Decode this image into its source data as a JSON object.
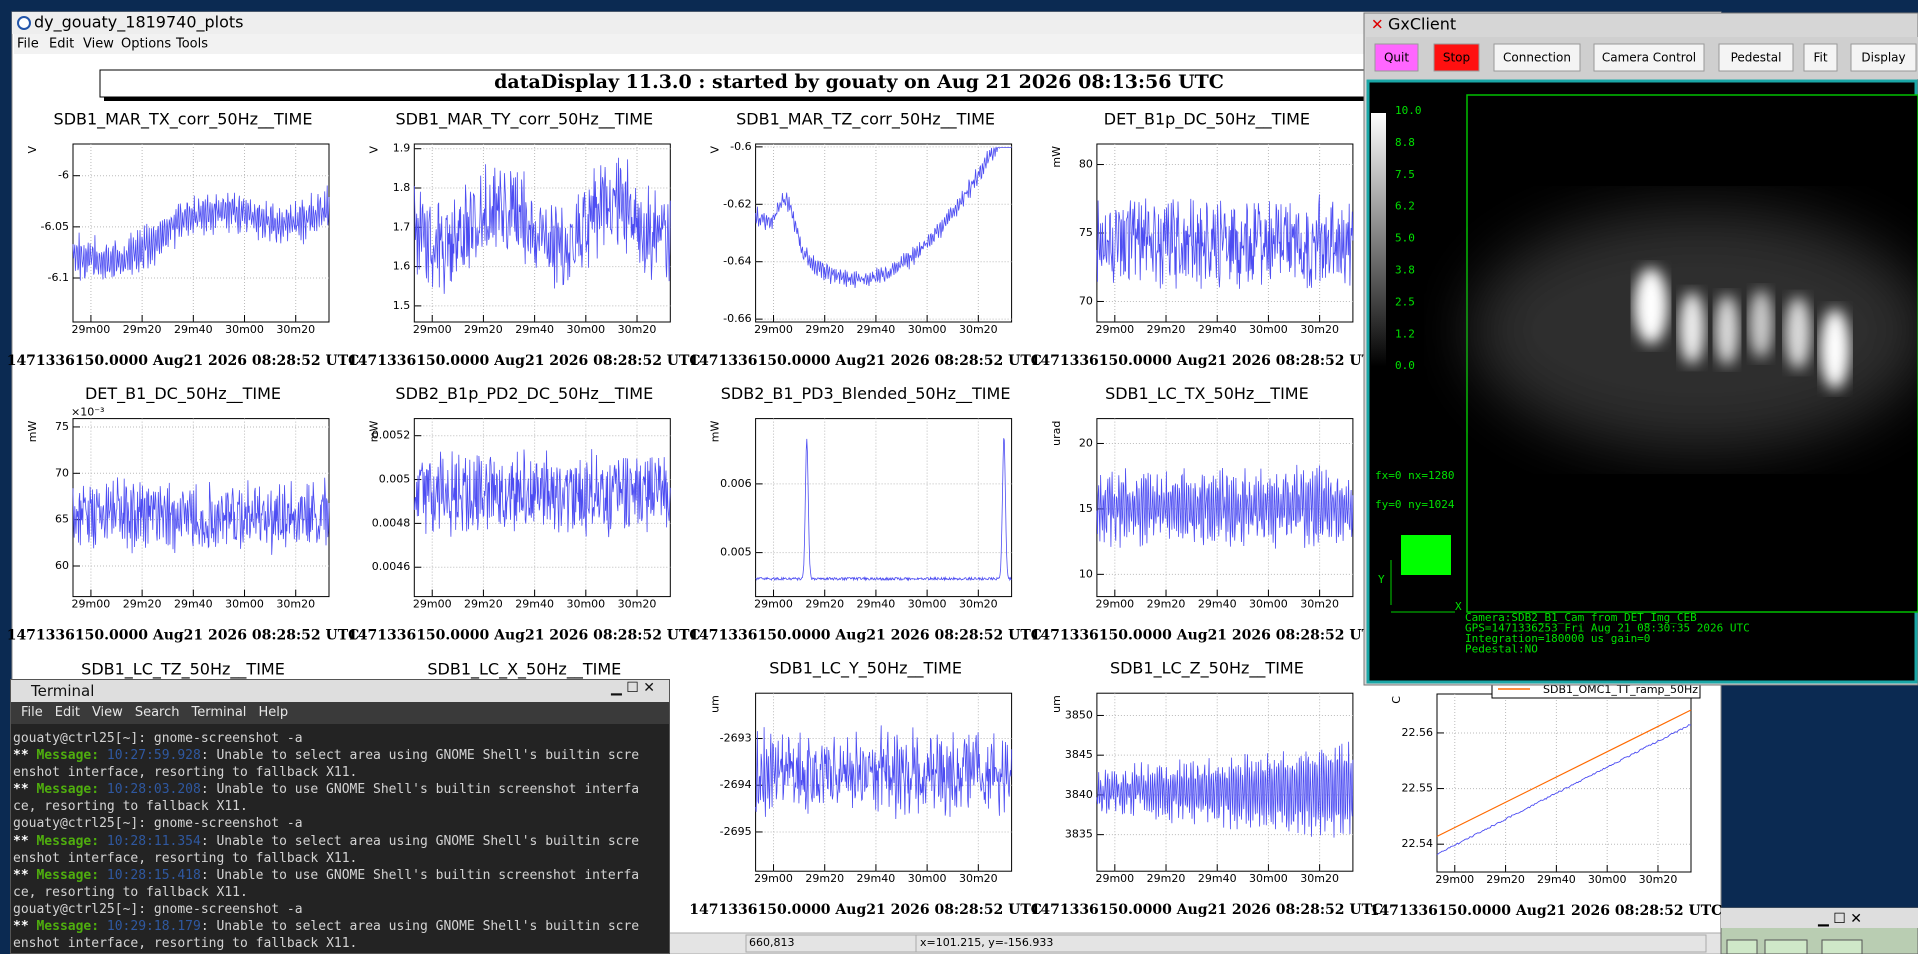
{
  "plots_window": {
    "title": "dy_gouaty_1819740_plots",
    "menu": [
      "File",
      "Edit",
      "View",
      "Options",
      "Tools"
    ],
    "banner": "dataDisplay 11.3.0 : started by gouaty on Aug 21 2026 08:13:56 UTC",
    "xticks": [
      "29m00",
      "29m20",
      "29m40",
      "30m00",
      "30m20"
    ],
    "footer": "1471336150.0000 Aug21 2026 08:28:52 UTC",
    "plots": [
      {
        "title": "SDB1_MAR_TX_corr_50Hz__TIME",
        "unit": "V",
        "ylim": [
          -6.143,
          -5.969
        ],
        "yticks": [
          -6,
          -6.05,
          -6.1
        ]
      },
      {
        "title": "SDB1_MAR_TY_corr_50Hz__TIME",
        "unit": "V",
        "ylim": [
          1.459,
          1.912
        ],
        "yticks": [
          1.9,
          1.8,
          1.7,
          1.6,
          1.5
        ]
      },
      {
        "title": "SDB1_MAR_TZ_corr_50Hz__TIME",
        "unit": "V",
        "ylim": [
          -0.661,
          -0.599
        ],
        "yticks": [
          -0.6,
          -0.62,
          -0.64,
          -0.66
        ]
      },
      {
        "title": "DET_B1p_DC_50Hz__TIME",
        "unit": "mW",
        "ylim": [
          68.5,
          81.5
        ],
        "yticks": [
          80,
          75,
          70
        ]
      },
      {
        "title": "DET_B1_DC_50Hz__TIME",
        "unit": "mW",
        "exponent": "×10⁻³",
        "ylim": [
          56.7,
          75.9
        ],
        "yticks": [
          75,
          70,
          65,
          60
        ]
      },
      {
        "title": "SDB2_B1p_PD2_DC_50Hz__TIME",
        "unit": "mW",
        "ylim": [
          0.004466,
          0.005278
        ],
        "yticks": [
          0.0052,
          0.005,
          0.0048,
          0.0046
        ]
      },
      {
        "title": "SDB2_B1_PD3_Blended_50Hz__TIME",
        "unit": "mW",
        "ylim": [
          0.00436,
          0.00695
        ],
        "yticks": [
          0.006,
          0.005
        ]
      },
      {
        "title": "SDB1_LC_TX_50Hz__TIME",
        "unit": "urad",
        "ylim": [
          8.3,
          21.9
        ],
        "yticks": [
          20,
          15,
          10
        ]
      },
      {
        "title": "SDB1_LC_Y_50Hz__TIME",
        "unit": "um",
        "ylim": [
          -2695.84,
          -2692.03
        ],
        "yticks": [
          -2693,
          -2694,
          -2695
        ]
      },
      {
        "title": "SDB1_LC_Z_50Hz__TIME",
        "unit": "um",
        "ylim": [
          3830.4,
          3852.8
        ],
        "yticks": [
          3850,
          3845,
          3840,
          3835
        ]
      }
    ],
    "hidden_titles": [
      "SDB1_LC_TZ_50Hz__TIME",
      "SDB1_LC_X_50Hz__TIME"
    ],
    "omc_plot": {
      "legend": "SDB1_OMC1_TT_ramp_50Hz",
      "unit": "C",
      "ylim": [
        22.535,
        22.567
      ],
      "yticks": [
        22.56,
        22.55,
        22.54
      ]
    },
    "status": [
      "660,813",
      "x=101.215, y=-156.933"
    ]
  },
  "gxclient": {
    "title": "GxClient",
    "buttons": [
      "Quit",
      "Stop",
      "Connection",
      "Camera Control",
      "Pedestal",
      "Fit",
      "Display"
    ],
    "colorbar": [
      "10.0",
      "8.8",
      "7.5",
      "6.2",
      "5.0",
      "3.8",
      "2.5",
      "1.2",
      "0.0"
    ],
    "frame": [
      "fx=0 nx=1280",
      "fy=0 ny=1024"
    ],
    "axes": [
      "Y",
      "X"
    ],
    "info": [
      "Camera:SDB2_B1_Cam from DET_Img_CEB",
      "GPS=1471336253 Fri Aug 21 08:30:35 2026  UTC",
      "Integration=180000 us gain=0",
      "Pedestal:NO"
    ]
  },
  "terminal": {
    "title": "Terminal",
    "menu": [
      "File",
      "Edit",
      "View",
      "Search",
      "Terminal",
      "Help"
    ],
    "lines": [
      {
        "text": "gouaty@ctrl25[~]: gnome-screenshot -a"
      },
      {
        "stars": "**",
        "tag": "Message:",
        "time": "10:27:59.928",
        "text": ": Unable to select area using GNOME Shell's builtin scre"
      },
      {
        "text": "enshot interface, resorting to fallback X11."
      },
      {
        "stars": "**",
        "tag": "Message:",
        "time": "10:28:03.208",
        "text": ": Unable to use GNOME Shell's builtin screenshot interfa"
      },
      {
        "text": "ce, resorting to fallback X11."
      },
      {
        "text": "gouaty@ctrl25[~]: gnome-screenshot -a"
      },
      {
        "stars": "**",
        "tag": "Message:",
        "time": "10:28:11.354",
        "text": ": Unable to select area using GNOME Shell's builtin scre"
      },
      {
        "text": "enshot interface, resorting to fallback X11."
      },
      {
        "stars": "**",
        "tag": "Message:",
        "time": "10:28:15.418",
        "text": ": Unable to use GNOME Shell's builtin screenshot interfa"
      },
      {
        "text": "ce, resorting to fallback X11."
      },
      {
        "text": "gouaty@ctrl25[~]: gnome-screenshot -a"
      },
      {
        "stars": "**",
        "tag": "Message:",
        "time": "10:29:18.179",
        "text": ": Unable to select area using GNOME Shell's builtin scre"
      },
      {
        "text": "enshot interface, resorting to fallback X11."
      }
    ]
  }
}
